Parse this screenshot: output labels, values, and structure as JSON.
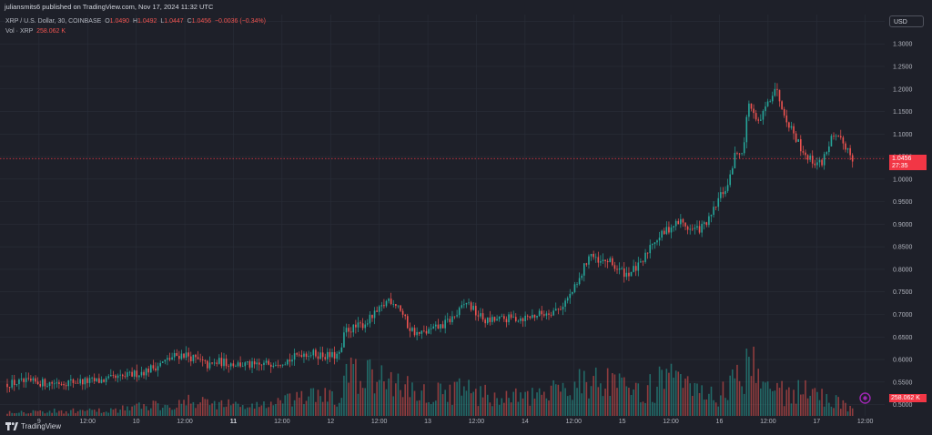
{
  "header": {
    "published_text": "juliansmits6 published on TradingView.com, Nov 17, 2024 11:32 UTC"
  },
  "legend": {
    "symbol": "XRP / U.S. Dollar, 30, COINBASE",
    "o_label": "O",
    "o_value": "1.0490",
    "h_label": "H",
    "h_value": "1.0492",
    "l_label": "L",
    "l_value": "1.0447",
    "c_label": "C",
    "c_value": "1.0456",
    "change": "−0.0036 (−0.34%)",
    "vol_label": "Vol · XRP",
    "vol_value": "258.062 K"
  },
  "currency_button": "USD",
  "last_price": {
    "price": "1.0456",
    "countdown": "27:35"
  },
  "volume_last": "258.062 K",
  "branding": "TradingView",
  "colors": {
    "up": "#26a69a",
    "down": "#ef5350",
    "background": "#1e2029",
    "grid": "#2a2e39",
    "axis_text": "#b2b5be",
    "price_line": "#f23645"
  },
  "chart_data": {
    "type": "candlestick",
    "title": "XRP / U.S. Dollar, 30, COINBASE",
    "interval": "30",
    "price_axis_ticks": [
      "1.3500",
      "1.3000",
      "1.2500",
      "1.2000",
      "1.1500",
      "1.1000",
      "1.0500",
      "1.0000",
      "0.9500",
      "0.9000",
      "0.8500",
      "0.8000",
      "0.7500",
      "0.7000",
      "0.6500",
      "0.6000",
      "0.5500",
      "0.5000"
    ],
    "time_axis_labels": [
      "9",
      "12:00",
      "10",
      "12:00",
      "11",
      "12:00",
      "12",
      "12:00",
      "13",
      "12:00",
      "14",
      "12:00",
      "15",
      "12:00",
      "16",
      "12:00",
      "17",
      "12:00"
    ],
    "price_range": [
      0.475,
      1.365
    ],
    "volume_max": 1.0,
    "price_path": [
      {
        "t": 0,
        "p": 0.546
      },
      {
        "t": 0.2,
        "p": 0.55
      },
      {
        "t": 0.45,
        "p": 0.548
      },
      {
        "t": 0.7,
        "p": 0.551
      },
      {
        "t": 0.95,
        "p": 0.552
      },
      {
        "t": 1.2,
        "p": 0.56
      },
      {
        "t": 1.45,
        "p": 0.575
      },
      {
        "t": 1.6,
        "p": 0.59
      },
      {
        "t": 1.75,
        "p": 0.608
      },
      {
        "t": 1.85,
        "p": 0.612
      },
      {
        "t": 2.0,
        "p": 0.596
      },
      {
        "t": 2.1,
        "p": 0.585
      },
      {
        "t": 2.2,
        "p": 0.595
      },
      {
        "t": 2.4,
        "p": 0.59
      },
      {
        "t": 2.6,
        "p": 0.585
      },
      {
        "t": 2.75,
        "p": 0.594
      },
      {
        "t": 2.95,
        "p": 0.6
      },
      {
        "t": 3.05,
        "p": 0.615
      },
      {
        "t": 3.2,
        "p": 0.612
      },
      {
        "t": 3.35,
        "p": 0.607
      },
      {
        "t": 3.45,
        "p": 0.61
      },
      {
        "t": 3.5,
        "p": 0.665
      },
      {
        "t": 3.6,
        "p": 0.67
      },
      {
        "t": 3.7,
        "p": 0.68
      },
      {
        "t": 3.85,
        "p": 0.708
      },
      {
        "t": 3.95,
        "p": 0.735
      },
      {
        "t": 4.05,
        "p": 0.72
      },
      {
        "t": 4.15,
        "p": 0.672
      },
      {
        "t": 4.25,
        "p": 0.655
      },
      {
        "t": 4.35,
        "p": 0.662
      },
      {
        "t": 4.5,
        "p": 0.675
      },
      {
        "t": 4.65,
        "p": 0.7
      },
      {
        "t": 4.75,
        "p": 0.728
      },
      {
        "t": 4.85,
        "p": 0.702
      },
      {
        "t": 4.95,
        "p": 0.685
      },
      {
        "t": 5.15,
        "p": 0.69
      },
      {
        "t": 5.35,
        "p": 0.693
      },
      {
        "t": 5.55,
        "p": 0.703
      },
      {
        "t": 5.7,
        "p": 0.712
      },
      {
        "t": 5.8,
        "p": 0.738
      },
      {
        "t": 5.9,
        "p": 0.77
      },
      {
        "t": 5.95,
        "p": 0.8
      },
      {
        "t": 6.02,
        "p": 0.838
      },
      {
        "t": 6.1,
        "p": 0.812
      },
      {
        "t": 6.2,
        "p": 0.82
      },
      {
        "t": 6.3,
        "p": 0.8
      },
      {
        "t": 6.4,
        "p": 0.79
      },
      {
        "t": 6.55,
        "p": 0.81
      },
      {
        "t": 6.65,
        "p": 0.86
      },
      {
        "t": 6.75,
        "p": 0.875
      },
      {
        "t": 6.85,
        "p": 0.895
      },
      {
        "t": 6.95,
        "p": 0.906
      },
      {
        "t": 7.05,
        "p": 0.888
      },
      {
        "t": 7.15,
        "p": 0.89
      },
      {
        "t": 7.25,
        "p": 0.91
      },
      {
        "t": 7.35,
        "p": 0.96
      },
      {
        "t": 7.45,
        "p": 0.99
      },
      {
        "t": 7.5,
        "p": 1.05
      },
      {
        "t": 7.6,
        "p": 1.07
      },
      {
        "t": 7.65,
        "p": 1.175
      },
      {
        "t": 7.7,
        "p": 1.14
      },
      {
        "t": 7.75,
        "p": 1.12
      },
      {
        "t": 7.85,
        "p": 1.17
      },
      {
        "t": 7.92,
        "p": 1.205
      },
      {
        "t": 8.0,
        "p": 1.16
      },
      {
        "t": 8.05,
        "p": 1.13
      },
      {
        "t": 8.12,
        "p": 1.1
      },
      {
        "t": 8.2,
        "p": 1.065
      },
      {
        "t": 8.3,
        "p": 1.04
      },
      {
        "t": 8.4,
        "p": 1.035
      },
      {
        "t": 8.5,
        "p": 1.09
      },
      {
        "t": 8.6,
        "p": 1.085
      },
      {
        "t": 8.68,
        "p": 1.065
      },
      {
        "t": 8.72,
        "p": 1.046
      }
    ],
    "volume_path": [
      {
        "t": 0,
        "v": 0.06
      },
      {
        "t": 1.0,
        "v": 0.07
      },
      {
        "t": 1.5,
        "v": 0.15
      },
      {
        "t": 2.0,
        "v": 0.2
      },
      {
        "t": 2.5,
        "v": 0.13
      },
      {
        "t": 3.0,
        "v": 0.22
      },
      {
        "t": 3.2,
        "v": 0.3
      },
      {
        "t": 3.4,
        "v": 0.2
      },
      {
        "t": 3.5,
        "v": 0.55
      },
      {
        "t": 3.8,
        "v": 0.5
      },
      {
        "t": 4.0,
        "v": 0.45
      },
      {
        "t": 4.3,
        "v": 0.3
      },
      {
        "t": 4.7,
        "v": 0.35
      },
      {
        "t": 5.0,
        "v": 0.25
      },
      {
        "t": 5.5,
        "v": 0.25
      },
      {
        "t": 5.9,
        "v": 0.5
      },
      {
        "t": 6.1,
        "v": 0.45
      },
      {
        "t": 6.5,
        "v": 0.3
      },
      {
        "t": 6.8,
        "v": 0.5
      },
      {
        "t": 7.0,
        "v": 0.35
      },
      {
        "t": 7.3,
        "v": 0.25
      },
      {
        "t": 7.5,
        "v": 0.45
      },
      {
        "t": 7.65,
        "v": 0.85
      },
      {
        "t": 7.8,
        "v": 0.4
      },
      {
        "t": 8.0,
        "v": 0.3
      },
      {
        "t": 8.2,
        "v": 0.35
      },
      {
        "t": 8.5,
        "v": 0.2
      },
      {
        "t": 8.72,
        "v": 0.1
      }
    ]
  }
}
